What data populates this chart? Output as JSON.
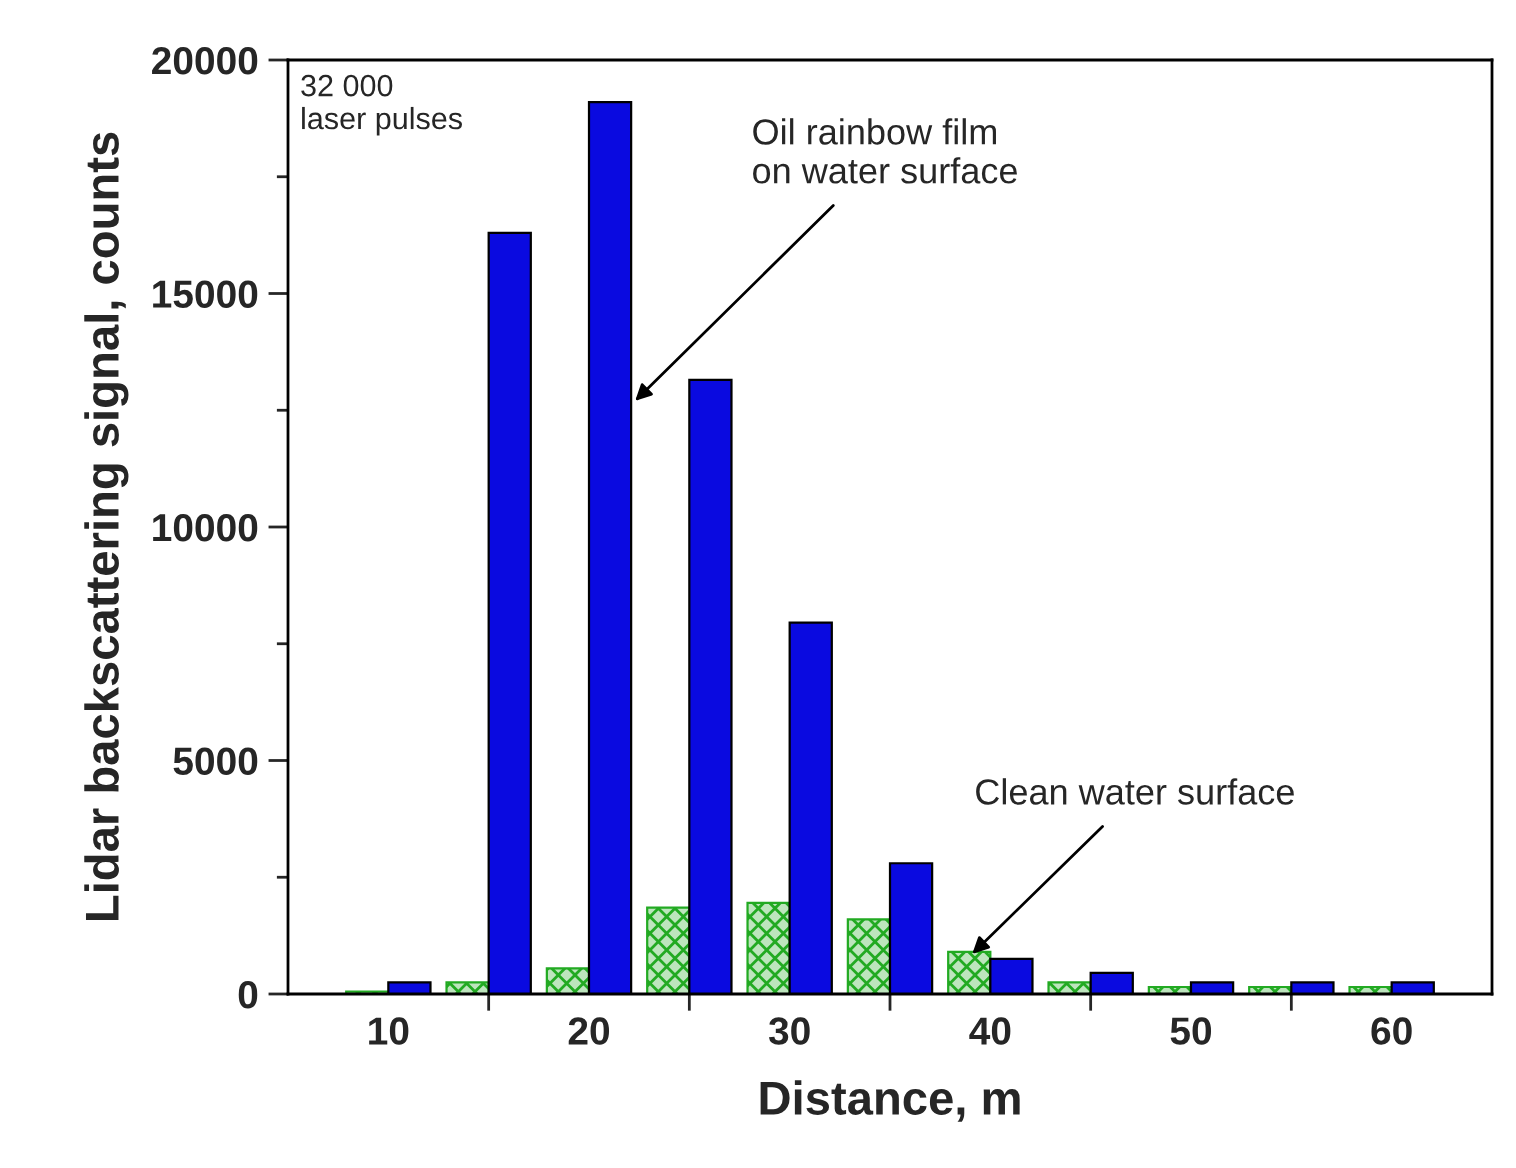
{
  "chart_data": {
    "type": "bar",
    "xlabel": "Distance, m",
    "ylabel": "Lidar backscattering signal, counts",
    "x": [
      10,
      15,
      20,
      25,
      30,
      35,
      40,
      45,
      50,
      55,
      60
    ],
    "series": [
      {
        "name": "Clean water surface",
        "color": "#22aa22",
        "values": [
          50,
          250,
          550,
          1850,
          1950,
          1600,
          900,
          250,
          150,
          150,
          150
        ]
      },
      {
        "name": "Oil rainbow film\non water surface",
        "color": "#0a0ae0",
        "values": [
          250,
          16300,
          19100,
          13150,
          7950,
          2800,
          750,
          450,
          250,
          250,
          250
        ]
      }
    ],
    "xlim": [
      5,
      65
    ],
    "xticks": [
      10,
      {
        "value": 15,
        "label": null
      },
      20,
      {
        "value": 25,
        "label": null
      },
      30,
      {
        "value": 35,
        "label": null
      },
      40,
      {
        "value": 45,
        "label": null
      },
      50,
      {
        "value": 55,
        "label": null
      },
      60
    ],
    "ylim": [
      0,
      20000
    ],
    "yticks": [
      0,
      {
        "value": 2500,
        "label": null
      },
      5000,
      {
        "value": 7500,
        "label": null
      },
      10000,
      {
        "value": 12500,
        "label": null
      },
      15000,
      {
        "value": 17500,
        "label": null
      },
      20000
    ],
    "annotations": [
      "32 000\nlaser pulses"
    ],
    "grid": false,
    "legend": false
  }
}
